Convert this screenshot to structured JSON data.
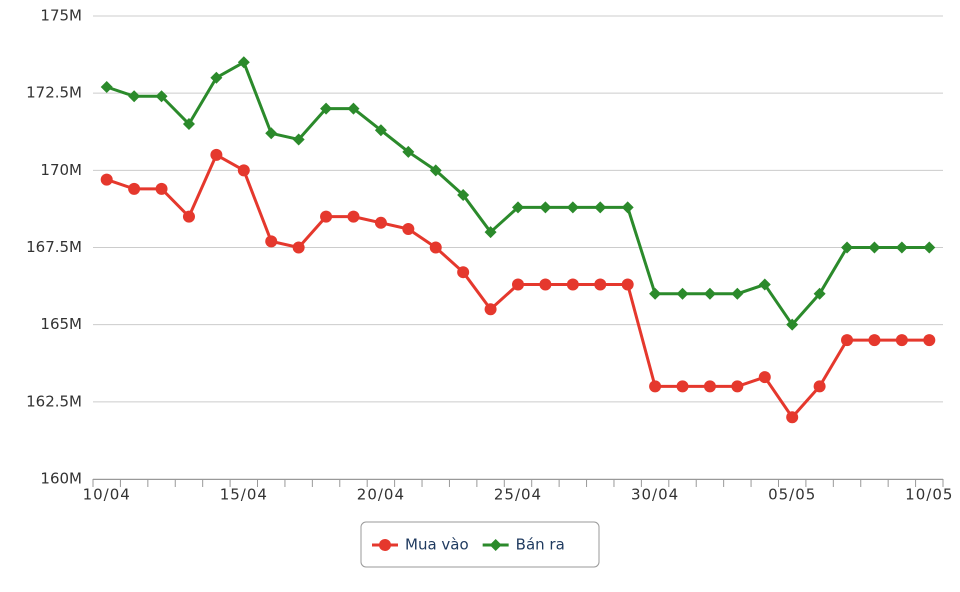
{
  "chart_data": {
    "type": "line",
    "categories": [
      "10/04",
      null,
      null,
      null,
      null,
      "15/04",
      null,
      null,
      null,
      null,
      "20/04",
      null,
      null,
      null,
      null,
      "25/04",
      null,
      null,
      null,
      null,
      "30/04",
      null,
      null,
      null,
      null,
      "05/05",
      null,
      null,
      null,
      null,
      "10/05"
    ],
    "series": [
      {
        "name": "Mua vào",
        "color": "#e5382d",
        "marker": "circle",
        "values": [
          169.7,
          169.4,
          169.4,
          168.5,
          170.5,
          170.0,
          167.7,
          167.5,
          168.5,
          168.5,
          168.3,
          168.1,
          167.5,
          166.7,
          165.5,
          166.3,
          166.3,
          166.3,
          166.3,
          166.3,
          163.0,
          163.0,
          163.0,
          163.0,
          163.3,
          162.0,
          163.0,
          164.5,
          164.5,
          164.5,
          164.5
        ]
      },
      {
        "name": "Bán ra",
        "color": "#2b8a2b",
        "marker": "diamond",
        "values": [
          172.7,
          172.4,
          172.4,
          171.5,
          173.0,
          173.5,
          171.2,
          171.0,
          172.0,
          172.0,
          171.3,
          170.6,
          170.0,
          169.2,
          168.0,
          168.8,
          168.8,
          168.8,
          168.8,
          168.8,
          166.0,
          166.0,
          166.0,
          166.0,
          166.3,
          165.0,
          166.0,
          167.5,
          167.5,
          167.5,
          167.5
        ]
      }
    ],
    "ylim": [
      160,
      175
    ],
    "yticks": [
      {
        "value": 160,
        "label": "160M"
      },
      {
        "value": 162.5,
        "label": "162.5M"
      },
      {
        "value": 165,
        "label": "165M"
      },
      {
        "value": 167.5,
        "label": "167.5M"
      },
      {
        "value": 170,
        "label": "170M"
      },
      {
        "value": 172.5,
        "label": "172.5M"
      },
      {
        "value": 175,
        "label": "175M"
      }
    ],
    "grid": true,
    "legend": "bottom"
  }
}
